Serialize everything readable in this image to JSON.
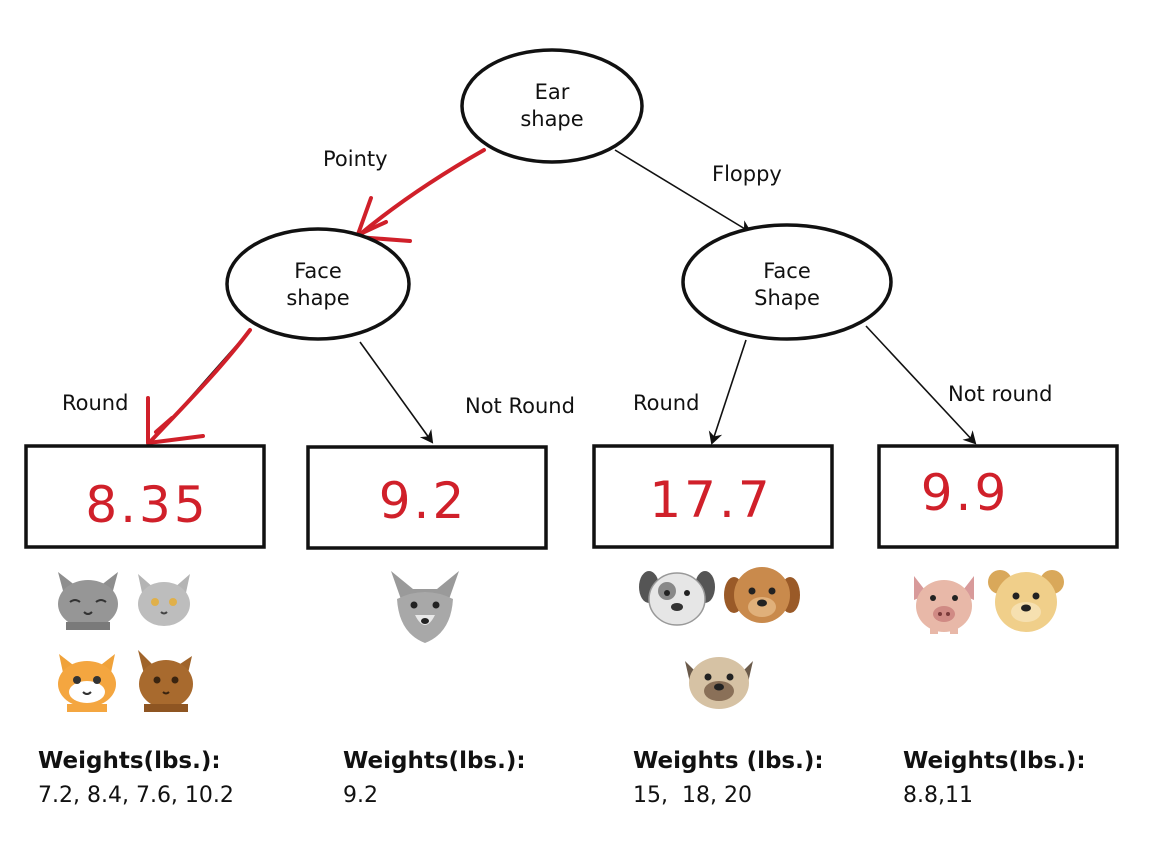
{
  "root": {
    "label_line1": "Ear",
    "label_line2": "shape"
  },
  "left_node": {
    "label_line1": "Face",
    "label_line2": "shape"
  },
  "right_node": {
    "label_line1": "Face",
    "label_line2": "Shape"
  },
  "edges": {
    "pointy": "Pointy",
    "floppy": "Floppy",
    "left_round": "Round",
    "left_not_round": "Not Round",
    "right_round": "Round",
    "right_not_round": "Not round"
  },
  "leaves": [
    {
      "value": "8.35",
      "weights_title": "Weights(lbs.):",
      "weights": "7.2, 8.4, 7.6, 10.2"
    },
    {
      "value": "9.2",
      "weights_title": "Weights(lbs.):",
      "weights": "9.2"
    },
    {
      "value": "17.7",
      "weights_title": "Weights (lbs.):",
      "weights": "15,  18, 20"
    },
    {
      "value": "9.9",
      "weights_title": "Weights(lbs.):",
      "weights": "8.8,11"
    }
  ],
  "colors": {
    "highlight": "#d0202a",
    "stroke": "#111111"
  },
  "icons": [
    "gray-cat-icon",
    "gray-cat-icon",
    "orange-cat-icon",
    "brown-cat-icon",
    "gray-cat-icon",
    "gray-dog-icon",
    "brown-dog-icon",
    "tan-dog-icon",
    "pink-pig-icon",
    "yellow-dog-icon"
  ]
}
